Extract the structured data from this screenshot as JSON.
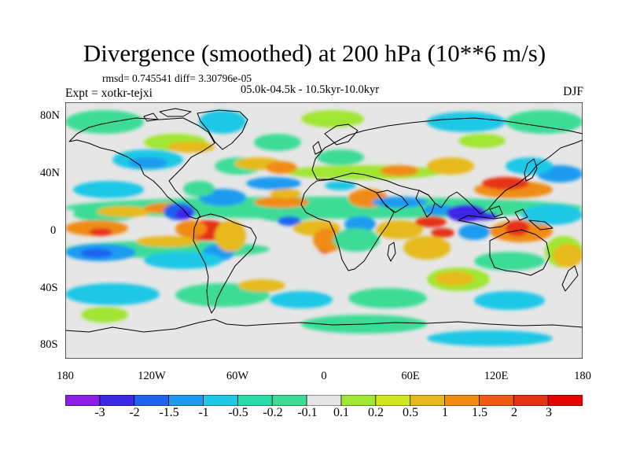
{
  "title": "Divergence (smoothed) at 200 hPa (10**6 m/s)",
  "info_line": "rmsd= 0.745541 diff= 3.30796e-05",
  "expt_label": "Expt = xotkr-tejxi",
  "period_label": "05.0k-04.5k - 10.5kyr-10.0kyr",
  "season_label": "DJF",
  "map": {
    "y_ticks": [
      "80N",
      "40N",
      "0",
      "40S",
      "80S"
    ],
    "x_ticks": [
      "180",
      "120W",
      "60W",
      "0",
      "60E",
      "120E",
      "180"
    ]
  },
  "colorbar": {
    "labels": [
      "-3",
      "-2",
      "-1.5",
      "-1",
      "-0.5",
      "-0.2",
      "-0.1",
      "0.1",
      "0.2",
      "0.5",
      "1",
      "1.5",
      "2",
      "3"
    ],
    "colors": [
      "#8c1ee6",
      "#3c28e6",
      "#1e64f0",
      "#1e9bf0",
      "#1ec8e6",
      "#28dcaa",
      "#3cdc96",
      "#e6e6e6",
      "#a0e632",
      "#d2e61e",
      "#e6b91e",
      "#f08c14",
      "#f05a14",
      "#e63214",
      "#e60000"
    ]
  },
  "color_scale": {
    "blue_deep": "#3c28e6",
    "blue": "#1e64f0",
    "blue_light": "#1e9bf0",
    "cyan": "#1ec8e6",
    "teal": "#3cdc96",
    "neutral": "#e6e6e6",
    "green": "#a0e632",
    "yellow": "#e6b91e",
    "orange": "#f08c14",
    "red": "#e63214"
  }
}
